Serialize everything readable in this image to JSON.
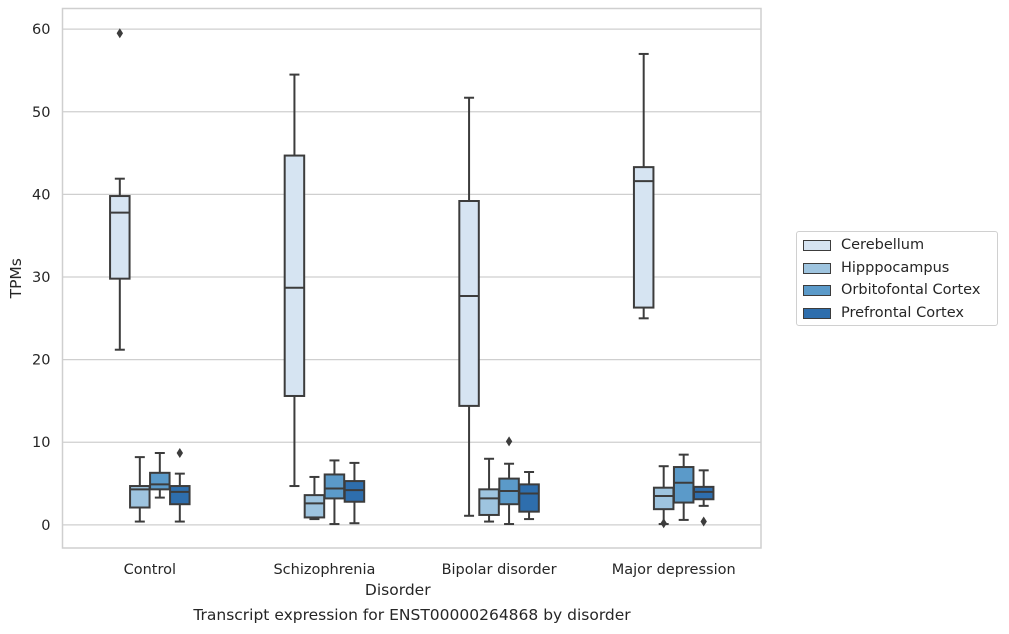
{
  "chart_data": {
    "type": "box",
    "ylabel": "TPMs",
    "xlabel": "Disorder",
    "caption": "Transcript expression for ENST00000264868 by disorder",
    "ylim": [
      -2.8,
      62.5
    ],
    "yticks": [
      0,
      10,
      20,
      30,
      40,
      50,
      60
    ],
    "grid": "horizontal",
    "legend_position": "right",
    "categories": [
      "Control",
      "Schizophrenia",
      "Bipolar disorder",
      "Major depression"
    ],
    "series": [
      {
        "name": "Cerebellum",
        "color": "#d6e4f2",
        "boxes": [
          {
            "whisker_low": 21.2,
            "q1": 29.8,
            "median": 37.8,
            "q3": 39.8,
            "whisker_high": 41.9,
            "outliers": [
              59.5
            ]
          },
          {
            "whisker_low": 4.7,
            "q1": 15.6,
            "median": 28.7,
            "q3": 44.7,
            "whisker_high": 54.5,
            "outliers": []
          },
          {
            "whisker_low": 1.1,
            "q1": 14.4,
            "median": 27.7,
            "q3": 39.2,
            "whisker_high": 51.7,
            "outliers": []
          },
          {
            "whisker_low": 25.0,
            "q1": 26.3,
            "median": 41.6,
            "q3": 43.3,
            "whisker_high": 57.0,
            "outliers": []
          }
        ]
      },
      {
        "name": "Hipppocampus",
        "color": "#9ec4df",
        "boxes": [
          {
            "whisker_low": 0.4,
            "q1": 2.1,
            "median": 4.3,
            "q3": 4.7,
            "whisker_high": 8.2,
            "outliers": []
          },
          {
            "whisker_low": 0.7,
            "q1": 0.9,
            "median": 2.6,
            "q3": 3.6,
            "whisker_high": 5.8,
            "outliers": []
          },
          {
            "whisker_low": 0.4,
            "q1": 1.2,
            "median": 3.2,
            "q3": 4.3,
            "whisker_high": 8.0,
            "outliers": []
          },
          {
            "whisker_low": 0.1,
            "q1": 1.9,
            "median": 3.5,
            "q3": 4.5,
            "whisker_high": 7.1,
            "outliers": [
              0.2
            ]
          }
        ]
      },
      {
        "name": "Orbitofontal Cortex",
        "color": "#5b9ac9",
        "boxes": [
          {
            "whisker_low": 3.3,
            "q1": 4.3,
            "median": 4.9,
            "q3": 6.3,
            "whisker_high": 8.7,
            "outliers": []
          },
          {
            "whisker_low": 0.1,
            "q1": 3.2,
            "median": 4.4,
            "q3": 6.1,
            "whisker_high": 7.8,
            "outliers": []
          },
          {
            "whisker_low": 0.1,
            "q1": 2.5,
            "median": 4.1,
            "q3": 5.6,
            "whisker_high": 7.4,
            "outliers": [
              10.1
            ]
          },
          {
            "whisker_low": 0.6,
            "q1": 2.7,
            "median": 5.1,
            "q3": 7.0,
            "whisker_high": 8.5,
            "outliers": []
          }
        ]
      },
      {
        "name": "Prefrontal Cortex",
        "color": "#2e6ead",
        "boxes": [
          {
            "whisker_low": 0.4,
            "q1": 2.5,
            "median": 4.0,
            "q3": 4.7,
            "whisker_high": 6.2,
            "outliers": [
              8.7
            ]
          },
          {
            "whisker_low": 0.2,
            "q1": 2.8,
            "median": 4.2,
            "q3": 5.3,
            "whisker_high": 7.5,
            "outliers": []
          },
          {
            "whisker_low": 0.7,
            "q1": 1.6,
            "median": 3.8,
            "q3": 4.9,
            "whisker_high": 6.4,
            "outliers": []
          },
          {
            "whisker_low": 2.3,
            "q1": 3.1,
            "median": 4.0,
            "q3": 4.6,
            "whisker_high": 6.6,
            "outliers": [
              0.4
            ]
          }
        ]
      }
    ]
  }
}
